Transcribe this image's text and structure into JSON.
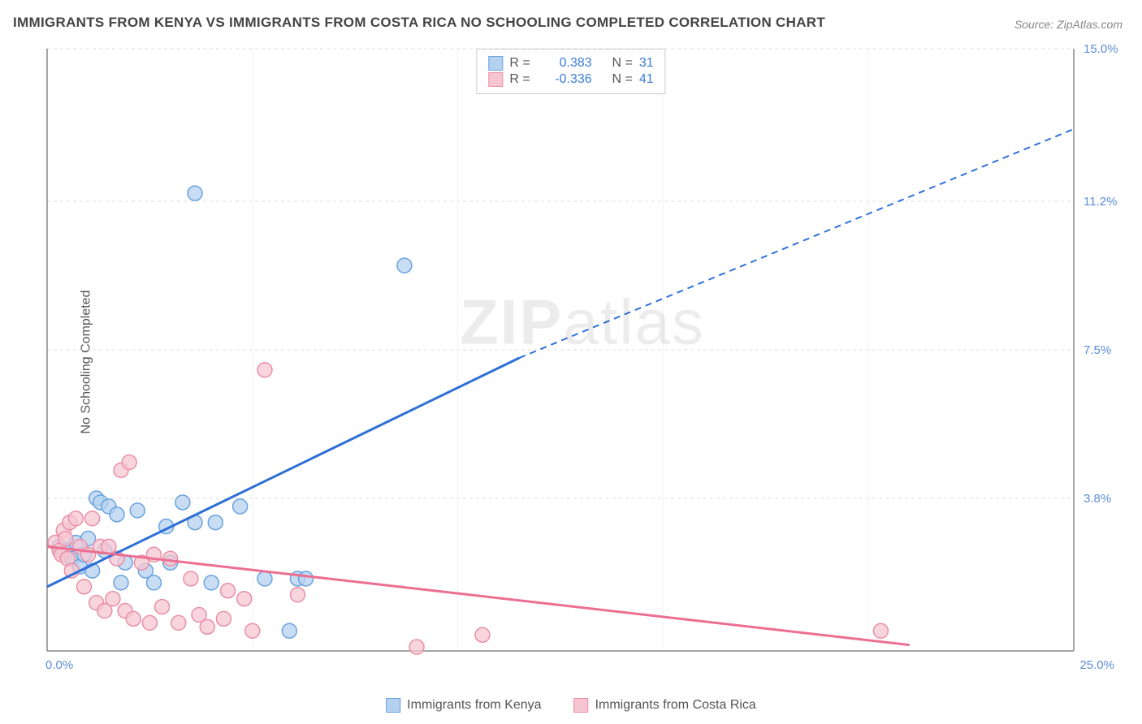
{
  "title": "IMMIGRANTS FROM KENYA VS IMMIGRANTS FROM COSTA RICA NO SCHOOLING COMPLETED CORRELATION CHART",
  "source_label": "Source:",
  "source_value": "ZipAtlas.com",
  "y_axis_label": "No Schooling Completed",
  "watermark_a": "ZIP",
  "watermark_b": "atlas",
  "chart": {
    "type": "scatter",
    "background_color": "#ffffff",
    "grid_color": "#dddddd",
    "axis_color": "#888888",
    "xlim": [
      0,
      25
    ],
    "ylim": [
      0,
      15
    ],
    "x_ticks": [
      0.0,
      25.0
    ],
    "x_tick_labels": [
      "0.0%",
      "25.0%"
    ],
    "y_ticks": [
      3.8,
      7.5,
      11.2,
      15.0
    ],
    "y_tick_labels": [
      "3.8%",
      "7.5%",
      "11.2%",
      "15.0%"
    ],
    "tick_label_color": "#5b8dd6",
    "tick_fontsize": 15,
    "series": [
      {
        "name": "Immigrants from Kenya",
        "marker_fill": "#b5d1f0",
        "marker_stroke": "#6aa3e0",
        "marker_opacity": 0.75,
        "marker_radius": 9,
        "line_color": "#2e6fd6",
        "line_width": 3,
        "r_value": "0.383",
        "n_value": "31",
        "trend": {
          "solid_from": [
            0,
            1.6
          ],
          "solid_to": [
            11.5,
            7.3
          ],
          "dash_to": [
            25,
            13.0
          ]
        },
        "points": [
          [
            0.3,
            2.6
          ],
          [
            0.5,
            2.5
          ],
          [
            0.6,
            2.3
          ],
          [
            0.7,
            2.7
          ],
          [
            0.8,
            2.1
          ],
          [
            0.9,
            2.4
          ],
          [
            1.0,
            2.8
          ],
          [
            1.1,
            2.0
          ],
          [
            1.2,
            3.8
          ],
          [
            1.3,
            3.7
          ],
          [
            1.4,
            2.5
          ],
          [
            1.5,
            3.6
          ],
          [
            1.7,
            3.4
          ],
          [
            1.9,
            2.2
          ],
          [
            1.8,
            1.7
          ],
          [
            2.2,
            3.5
          ],
          [
            2.4,
            2.0
          ],
          [
            2.6,
            1.7
          ],
          [
            2.9,
            3.1
          ],
          [
            3.0,
            2.2
          ],
          [
            3.3,
            3.7
          ],
          [
            3.6,
            3.2
          ],
          [
            4.0,
            1.7
          ],
          [
            4.1,
            3.2
          ],
          [
            4.7,
            3.6
          ],
          [
            5.3,
            1.8
          ],
          [
            6.1,
            1.8
          ],
          [
            6.3,
            1.8
          ],
          [
            5.9,
            0.5
          ],
          [
            3.6,
            11.4
          ],
          [
            8.7,
            9.6
          ]
        ]
      },
      {
        "name": "Immigrants from Costa Rica",
        "marker_fill": "#f6c5d1",
        "marker_stroke": "#e98fa8",
        "marker_opacity": 0.75,
        "marker_radius": 9,
        "line_color": "#ec6f91",
        "line_width": 3,
        "r_value": "-0.336",
        "n_value": "41",
        "trend": {
          "solid_from": [
            0,
            2.6
          ],
          "solid_to": [
            21,
            0.15
          ],
          "dash_to": null
        },
        "points": [
          [
            0.2,
            2.7
          ],
          [
            0.3,
            2.5
          ],
          [
            0.35,
            2.4
          ],
          [
            0.4,
            3.0
          ],
          [
            0.45,
            2.8
          ],
          [
            0.5,
            2.3
          ],
          [
            0.55,
            3.2
          ],
          [
            0.6,
            2.0
          ],
          [
            0.7,
            3.3
          ],
          [
            0.8,
            2.6
          ],
          [
            0.9,
            1.6
          ],
          [
            1.0,
            2.4
          ],
          [
            1.1,
            3.3
          ],
          [
            1.2,
            1.2
          ],
          [
            1.3,
            2.6
          ],
          [
            1.4,
            1.0
          ],
          [
            1.5,
            2.6
          ],
          [
            1.6,
            1.3
          ],
          [
            1.7,
            2.3
          ],
          [
            1.8,
            4.5
          ],
          [
            1.9,
            1.0
          ],
          [
            2.0,
            4.7
          ],
          [
            2.1,
            0.8
          ],
          [
            2.3,
            2.2
          ],
          [
            2.5,
            0.7
          ],
          [
            2.6,
            2.4
          ],
          [
            2.8,
            1.1
          ],
          [
            3.0,
            2.3
          ],
          [
            3.2,
            0.7
          ],
          [
            3.5,
            1.8
          ],
          [
            3.7,
            0.9
          ],
          [
            3.9,
            0.6
          ],
          [
            4.3,
            0.8
          ],
          [
            4.4,
            1.5
          ],
          [
            4.8,
            1.3
          ],
          [
            5.0,
            0.5
          ],
          [
            5.3,
            7.0
          ],
          [
            6.1,
            1.4
          ],
          [
            9.0,
            0.1
          ],
          [
            10.6,
            0.4
          ],
          [
            20.3,
            0.5
          ]
        ]
      }
    ],
    "legend_top": {
      "r_label": "R =",
      "n_label": "N ="
    },
    "legend_bottom_labels": [
      "Immigrants from Kenya",
      "Immigrants from Costa Rica"
    ]
  }
}
